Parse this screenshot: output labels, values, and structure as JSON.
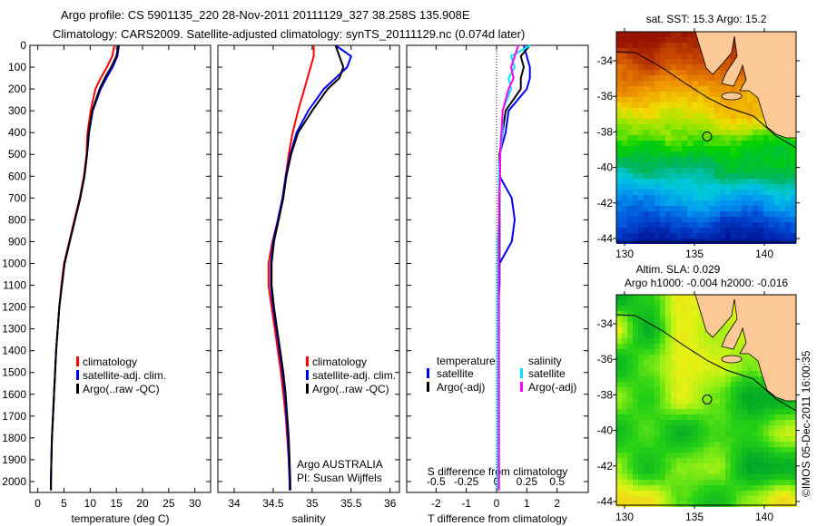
{
  "title": {
    "line1": "Argo profile: CS 5901135_220 28-Nov-2011 20111129_327 38.258S 135.908E",
    "line2": "Climatology: CARS2009. Satellite-adjusted climatology: synTS_20111129.nc (0.074d later)"
  },
  "colors": {
    "climatology": "#ff0000",
    "satellite": "#0000ff",
    "argo": "#000000",
    "sal_satellite": "#00e5ff",
    "sal_argo": "#ff00ff",
    "land": "#fcc996"
  },
  "chart_data": [
    {
      "type": "line",
      "name": "temperature-profile",
      "xlabel": "temperature (deg C)",
      "xlim": [
        -1.5,
        33
      ],
      "ylim": [
        2050,
        0
      ],
      "xticks": [
        0,
        5,
        10,
        15,
        20,
        25,
        30
      ],
      "yticks": [
        0,
        100,
        200,
        300,
        400,
        500,
        600,
        700,
        800,
        900,
        1000,
        1100,
        1200,
        1300,
        1400,
        1500,
        1600,
        1700,
        1800,
        1900,
        2000
      ],
      "depth": [
        0,
        50,
        100,
        150,
        200,
        300,
        400,
        500,
        600,
        700,
        800,
        900,
        1000,
        1100,
        1200,
        1300,
        1400,
        1500,
        1600,
        1700,
        1800,
        1900,
        2000,
        2040
      ],
      "series": [
        {
          "name": "climatology",
          "color": "#ff0000",
          "values": [
            14.6,
            14.2,
            13.2,
            12.0,
            11.0,
            10.1,
            9.5,
            9.3,
            8.8,
            8.0,
            7.0,
            6.0,
            5.0,
            4.5,
            4.1,
            3.8,
            3.5,
            3.3,
            3.1,
            2.9,
            2.7,
            2.6,
            2.5,
            2.5
          ]
        },
        {
          "name": "satellite-adj. clim.",
          "color": "#0000ff",
          "values": [
            15.5,
            15.2,
            14.3,
            13.1,
            12.0,
            10.5,
            9.8,
            9.4,
            8.9,
            8.1,
            7.1,
            6.1,
            5.1,
            4.6,
            4.1,
            3.8,
            3.5,
            3.3,
            3.1,
            2.9,
            2.7,
            2.6,
            2.5,
            2.5
          ]
        },
        {
          "name": "Argo(..raw -QC)",
          "color": "#000000",
          "values": [
            15.4,
            15.0,
            14.0,
            12.8,
            11.8,
            10.4,
            9.7,
            9.4,
            8.9,
            8.1,
            7.1,
            6.1,
            5.1,
            4.6,
            4.1,
            3.8,
            3.5,
            3.3,
            3.1,
            2.9,
            2.7,
            2.6,
            2.5,
            2.5
          ]
        }
      ],
      "legend": [
        "climatology",
        "satellite-adj. clim.",
        "Argo(..raw -QC)"
      ]
    },
    {
      "type": "line",
      "name": "salinity-profile",
      "xlabel": "salinity",
      "xlim": [
        33.79,
        36.12
      ],
      "ylim": [
        2050,
        0
      ],
      "xticks": [
        34,
        34.5,
        35,
        35.5,
        36
      ],
      "depth": [
        0,
        50,
        100,
        150,
        200,
        300,
        400,
        500,
        600,
        700,
        800,
        900,
        1000,
        1100,
        1200,
        1300,
        1400,
        1500,
        1600,
        1700,
        1800,
        1900,
        2000,
        2040
      ],
      "series": [
        {
          "name": "climatology",
          "color": "#ff0000",
          "values": [
            35.02,
            35.02,
            34.98,
            34.94,
            34.9,
            34.82,
            34.75,
            34.7,
            34.66,
            34.62,
            34.56,
            34.49,
            34.44,
            34.44,
            34.48,
            34.52,
            34.56,
            34.6,
            34.63,
            34.66,
            34.68,
            34.7,
            34.71,
            34.72
          ]
        },
        {
          "name": "satellite-adj. clim.",
          "color": "#0000ff",
          "values": [
            35.3,
            35.5,
            35.45,
            35.3,
            35.15,
            34.95,
            34.8,
            34.72,
            34.66,
            34.62,
            34.56,
            34.5,
            34.47,
            34.47,
            34.5,
            34.54,
            34.58,
            34.62,
            34.65,
            34.67,
            34.69,
            34.7,
            34.71,
            34.71
          ]
        },
        {
          "name": "Argo(..raw -QC)",
          "color": "#000000",
          "values": [
            35.3,
            35.35,
            35.4,
            35.35,
            35.2,
            35.0,
            34.82,
            34.73,
            34.67,
            34.63,
            34.57,
            34.51,
            34.48,
            34.48,
            34.51,
            34.55,
            34.59,
            34.63,
            34.66,
            34.68,
            34.7,
            34.71,
            34.72,
            34.72
          ]
        }
      ],
      "legend": [
        "climatology",
        "satellite-adj. clim.",
        "Argo(..raw -QC)"
      ],
      "annotation": [
        "Argo AUSTRALIA",
        "PI: Susan Wijffels"
      ]
    },
    {
      "type": "line",
      "name": "difference-profile",
      "xlabel": "T difference from climatology",
      "xlabel2": "S difference from climatology",
      "xlim": [
        -2.97,
        3.03
      ],
      "xticks": [
        -2,
        -1,
        0,
        1,
        2
      ],
      "xticks2": [
        -0.5,
        -0.25,
        0,
        0.25,
        0.5
      ],
      "depth": [
        0,
        50,
        100,
        150,
        200,
        300,
        400,
        500,
        600,
        700,
        800,
        900,
        1000,
        1100,
        1200,
        1300,
        1400,
        1500,
        1600,
        1700,
        1800,
        1900,
        2000,
        2040
      ],
      "series": [
        {
          "name": "temperature satellite",
          "unit": "T",
          "color": "#0000ff",
          "values": [
            0.9,
            1.0,
            1.1,
            1.1,
            1.0,
            0.4,
            0.3,
            0.1,
            0.1,
            0.5,
            0.6,
            0.5,
            0.1,
            0.1,
            0.05,
            0.05,
            0.05,
            0.05,
            0.05,
            0.05,
            0.05,
            0.05,
            0.05,
            0.05
          ]
        },
        {
          "name": "temperature Argo(-adj)",
          "unit": "T",
          "color": "#000000",
          "values": [
            1.1,
            0.8,
            0.9,
            0.8,
            0.8,
            0.3,
            0.2,
            0.1,
            0.1,
            0.1,
            0.1,
            0.1,
            0.1,
            0.05,
            0.05,
            0.05,
            0.05,
            0.05,
            0.05,
            0.05,
            0.05,
            0.05,
            0.05,
            0.05
          ]
        },
        {
          "name": "salinity satellite",
          "unit": "S",
          "color": "#00e5ff",
          "values": [
            0.28,
            0.12,
            0.15,
            0.1,
            0.12,
            0.05,
            0.05,
            0.03,
            0.02,
            0.02,
            0.02,
            0.01,
            0.01,
            0.01,
            0.01,
            0.01,
            0.01,
            0.01,
            0.01,
            0.01,
            0.01,
            0.01,
            0.01,
            0.01
          ]
        },
        {
          "name": "salinity Argo(-adj)",
          "unit": "S",
          "color": "#ff00ff",
          "values": [
            0.18,
            0.15,
            0.12,
            0.14,
            0.1,
            0.05,
            0.04,
            0.03,
            0.03,
            0.02,
            0.02,
            0.02,
            0.02,
            0.02,
            0.02,
            0.02,
            0.02,
            0.02,
            0.02,
            0.02,
            0.02,
            0.02,
            0.02,
            0.02
          ]
        }
      ],
      "legend": {
        "temperature_title": "temperature",
        "salinity_title": "salinity",
        "satellite": "satellite",
        "argo": "Argo(-adj)"
      }
    },
    {
      "type": "heatmap",
      "name": "sst-map",
      "title": "sat. SST: 15.3 Argo: 15.2",
      "lon_ticks": [
        130,
        135,
        140
      ],
      "lat_ticks": [
        -34,
        -36,
        -38,
        -40,
        -42,
        -44
      ],
      "float_position": {
        "lat": -38.258,
        "lon": 135.908
      }
    },
    {
      "type": "heatmap",
      "name": "sla-map",
      "title": "Altim. SLA: 0.029",
      "subtitle": "Argo h1000: -0.004 h2000: -0.016",
      "lon_ticks": [
        130,
        135,
        140
      ],
      "lat_ticks": [
        -34,
        -36,
        -38,
        -40,
        -42,
        -44
      ],
      "float_position": {
        "lat": -38.258,
        "lon": 135.908
      }
    }
  ],
  "credit": "©IMOS 05-Dec-2011 16:00:35"
}
